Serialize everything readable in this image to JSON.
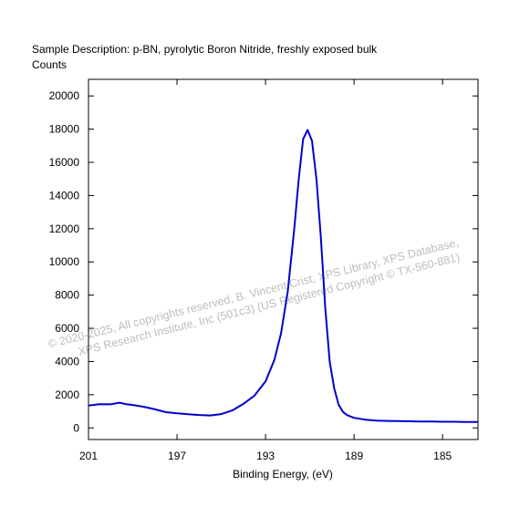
{
  "header": {
    "sample_description": "Sample Description:  p-BN, pyrolytic Boron Nitride, freshly exposed bulk",
    "y_units": "Counts"
  },
  "watermark": {
    "line1": "© 2020-2025,  All copyrights reserved,   B. Vincent Crist,   XPS Library, XPS Database,",
    "line2": "XPS Research Institute, Inc (501c3)   (US Registered Copyright © TX-560-881)"
  },
  "chart_data": {
    "type": "line",
    "title": "",
    "xlabel": "Binding Energy, (eV)",
    "ylabel": "Counts",
    "x_reversed": true,
    "xlim": [
      201.0,
      183.4
    ],
    "ylim": [
      -700,
      21000
    ],
    "x_ticks": [
      201,
      197,
      193,
      189,
      185
    ],
    "y_ticks": [
      0,
      2000,
      4000,
      6000,
      8000,
      10000,
      12000,
      14000,
      16000,
      18000,
      20000
    ],
    "grid": false,
    "line_color": "#0000cc",
    "series": [
      {
        "x": [
          201.0,
          200.5,
          200.0,
          199.6,
          199.3,
          199.0,
          198.5,
          198.0,
          197.5,
          197.0,
          196.5,
          196.0,
          195.5,
          195.0,
          194.5,
          194.0,
          193.5,
          193.0,
          192.6,
          192.3,
          192.0,
          191.7,
          191.5,
          191.3,
          191.1,
          190.9,
          190.7,
          190.5,
          190.3,
          190.1,
          189.9,
          189.7,
          189.5,
          189.3,
          189.0,
          188.5,
          188.0,
          187.5,
          187.0,
          186.5,
          186.0,
          185.5,
          185.0,
          184.5,
          184.0,
          183.4
        ],
        "values": [
          1350,
          1430,
          1420,
          1520,
          1430,
          1380,
          1270,
          1120,
          950,
          880,
          820,
          780,
          750,
          830,
          1050,
          1450,
          1950,
          2800,
          4100,
          5700,
          8200,
          12000,
          15000,
          17400,
          17950,
          17300,
          15000,
          11500,
          7200,
          4000,
          2400,
          1400,
          960,
          760,
          610,
          500,
          440,
          420,
          410,
          400,
          390,
          380,
          370,
          370,
          360,
          360
        ]
      }
    ]
  }
}
